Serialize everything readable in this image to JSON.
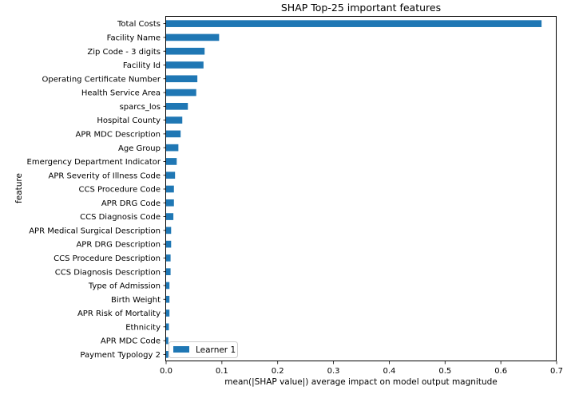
{
  "chart_data": {
    "type": "bar",
    "orientation": "horizontal",
    "title": "SHAP Top-25 important features",
    "xlabel": "mean(|SHAP value|) average impact on model output magnitude",
    "ylabel": "feature",
    "xlim": [
      0,
      0.7
    ],
    "xticks": [
      "0.0",
      "0.1",
      "0.2",
      "0.3",
      "0.4",
      "0.5",
      "0.6",
      "0.7"
    ],
    "grid": false,
    "legend": {
      "placement": "lower-left",
      "entries": [
        "Learner 1"
      ]
    },
    "bar_color": "#1f77b4",
    "categories": [
      "Total Costs",
      "Facility Name",
      "Zip Code - 3 digits",
      "Facility Id",
      "Operating Certificate Number",
      "Health Service Area",
      "sparcs_los",
      "Hospital County",
      "APR MDC Description",
      "Age Group",
      "Emergency Department Indicator",
      "APR Severity of Illness Code",
      "CCS Procedure Code",
      "APR DRG Code",
      "CCS Diagnosis Code",
      "APR Medical Surgical Description",
      "APR DRG Description",
      "CCS Procedure Description",
      "CCS Diagnosis Description",
      "Type of Admission",
      "Birth Weight",
      "APR Risk of Mortality",
      "Ethnicity",
      "APR MDC Code",
      "Payment Typology 2"
    ],
    "series": [
      {
        "name": "Learner 1",
        "values": [
          0.673,
          0.095,
          0.069,
          0.067,
          0.056,
          0.054,
          0.039,
          0.029,
          0.026,
          0.022,
          0.019,
          0.016,
          0.014,
          0.014,
          0.013,
          0.009,
          0.009,
          0.008,
          0.008,
          0.006,
          0.006,
          0.006,
          0.005,
          0.004,
          0.004
        ]
      }
    ]
  }
}
